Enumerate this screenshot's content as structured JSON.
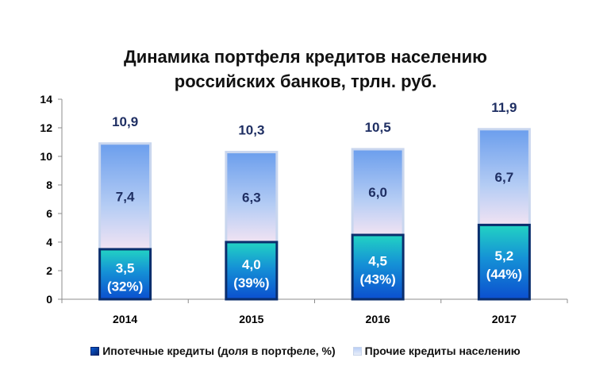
{
  "title_lines": [
    "Динамика портфеля кредитов населению",
    "российских  банков, трлн. руб."
  ],
  "legend": [
    {
      "label": "Ипотечные кредиты (доля в портфеле, %)",
      "icon": "dark-blue-square"
    },
    {
      "label": "Прочие кредиты населению",
      "icon": "light-blue-square"
    }
  ],
  "colors": {
    "mortgage_top": "#22d3c3",
    "mortgage_bottom": "#0b4fcf",
    "mortgage_border": "#0a2e6d",
    "other_top": "#6b9eed",
    "other_bottom": "#f1e3f3",
    "other_border": "#c9d6ee",
    "total_label": "#1f2f63",
    "other_label": "#1f2f63",
    "mortgage_label": "#ffffff"
  },
  "chart_data": {
    "type": "bar",
    "stacked": true,
    "categories": [
      "2014",
      "2015",
      "2016",
      "2017"
    ],
    "series": [
      {
        "name": "Ипотечные кредиты (доля в портфеле, %)",
        "values": [
          3.5,
          4.0,
          4.5,
          5.2
        ],
        "labels": [
          "3,5",
          "4,0",
          "4,5",
          "5,2"
        ],
        "share_labels": [
          "(32%)",
          "(39%)",
          "(43%)",
          "(44%)"
        ]
      },
      {
        "name": "Прочие кредиты населению",
        "values": [
          7.4,
          6.3,
          6.0,
          6.7
        ],
        "labels": [
          "7,4",
          "6,3",
          "6,0",
          "6,7"
        ]
      }
    ],
    "totals": [
      10.9,
      10.3,
      10.5,
      11.9
    ],
    "total_labels": [
      "10,9",
      "10,3",
      "10,5",
      "11,9"
    ],
    "ylim": [
      0,
      14
    ],
    "yticks": [
      "0",
      "2",
      "4",
      "6",
      "8",
      "10",
      "12",
      "14"
    ],
    "grid": false,
    "legend_position": "bottom"
  }
}
